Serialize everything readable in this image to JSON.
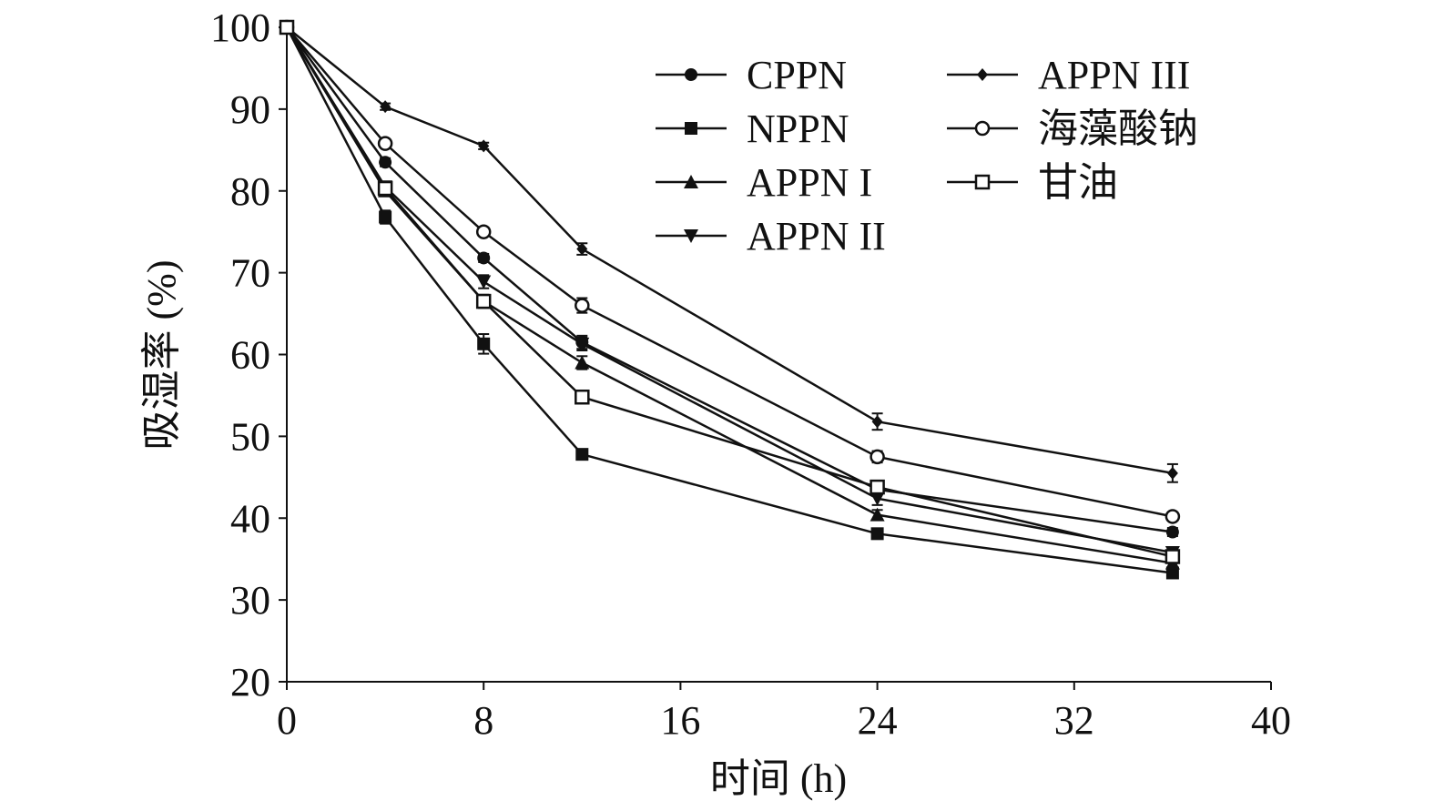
{
  "chart_data": {
    "type": "line",
    "title": "",
    "xlabel": "时间 (h)",
    "ylabel": "吸湿率 (%)",
    "xlim": [
      0,
      40
    ],
    "ylim": [
      20,
      100
    ],
    "xticks": [
      0,
      8,
      16,
      24,
      32,
      40
    ],
    "yticks": [
      20,
      30,
      40,
      50,
      60,
      70,
      80,
      90,
      100
    ],
    "grid": false,
    "legend_position": "top-right",
    "x": [
      0,
      4,
      8,
      12,
      24,
      36
    ],
    "series": [
      {
        "name": "CPPN",
        "marker": "filled-circle",
        "values": [
          100,
          83.5,
          71.8,
          61.5,
          43.5,
          38.3
        ],
        "errors": [
          0,
          0.5,
          0.5,
          0.8,
          0.6,
          0.5
        ]
      },
      {
        "name": "NPPN",
        "marker": "filled-square",
        "values": [
          100,
          76.8,
          61.3,
          47.8,
          38.1,
          33.3
        ],
        "errors": [
          0,
          0.8,
          1.2,
          0.6,
          0.5,
          0.5
        ]
      },
      {
        "name": "APPN I",
        "marker": "triangle-up",
        "values": [
          100,
          80.0,
          66.5,
          59.0,
          40.4,
          34.5
        ],
        "errors": [
          0,
          0.6,
          0.8,
          0.8,
          0.6,
          0.5
        ]
      },
      {
        "name": "APPN II",
        "marker": "triangle-down",
        "values": [
          100,
          80.5,
          68.9,
          61.3,
          42.4,
          35.8
        ],
        "errors": [
          0,
          0.6,
          0.8,
          0.8,
          0.8,
          0.6
        ]
      },
      {
        "name": "APPN III",
        "marker": "diamond",
        "values": [
          100,
          90.3,
          85.5,
          72.9,
          51.8,
          45.5
        ],
        "errors": [
          0,
          0.4,
          0.4,
          0.7,
          1.0,
          1.1
        ]
      },
      {
        "name": "海藻酸钠",
        "marker": "open-circle",
        "values": [
          100,
          85.8,
          75.0,
          66.0,
          47.5,
          40.2
        ],
        "errors": [
          0,
          0.5,
          0.5,
          0.9,
          0.7,
          0.5
        ]
      },
      {
        "name": "甘油",
        "marker": "open-square",
        "values": [
          100,
          80.3,
          66.5,
          54.8,
          43.8,
          35.3
        ],
        "errors": [
          0,
          0.8,
          0.8,
          0.7,
          0.7,
          0.8
        ]
      }
    ]
  }
}
